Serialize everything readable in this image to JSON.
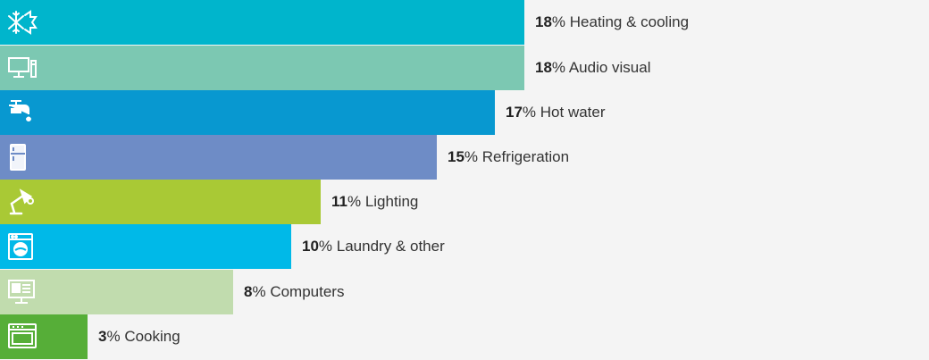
{
  "chart_data": {
    "type": "bar",
    "orientation": "horizontal",
    "unit": "%",
    "xlim": [
      0,
      18
    ],
    "grid": false,
    "legend": "none",
    "categories": [
      "Heating & cooling",
      "Audio visual",
      "Hot water",
      "Refrigeration",
      "Lighting",
      "Laundry & other",
      "Computers",
      "Cooking"
    ],
    "values": [
      18,
      18,
      17,
      15,
      11,
      10,
      8,
      3
    ],
    "colors": [
      "#00b5cc",
      "#7cc8b2",
      "#0898d0",
      "#6e8cc6",
      "#a9c935",
      "#00b9e8",
      "#c1dcae",
      "#56ae38"
    ],
    "icons": [
      "snowflake-sun-icon",
      "monitor-icon",
      "tap-icon",
      "fridge-icon",
      "desk-lamp-icon",
      "washing-machine-icon",
      "computer-icon",
      "oven-icon"
    ]
  }
}
